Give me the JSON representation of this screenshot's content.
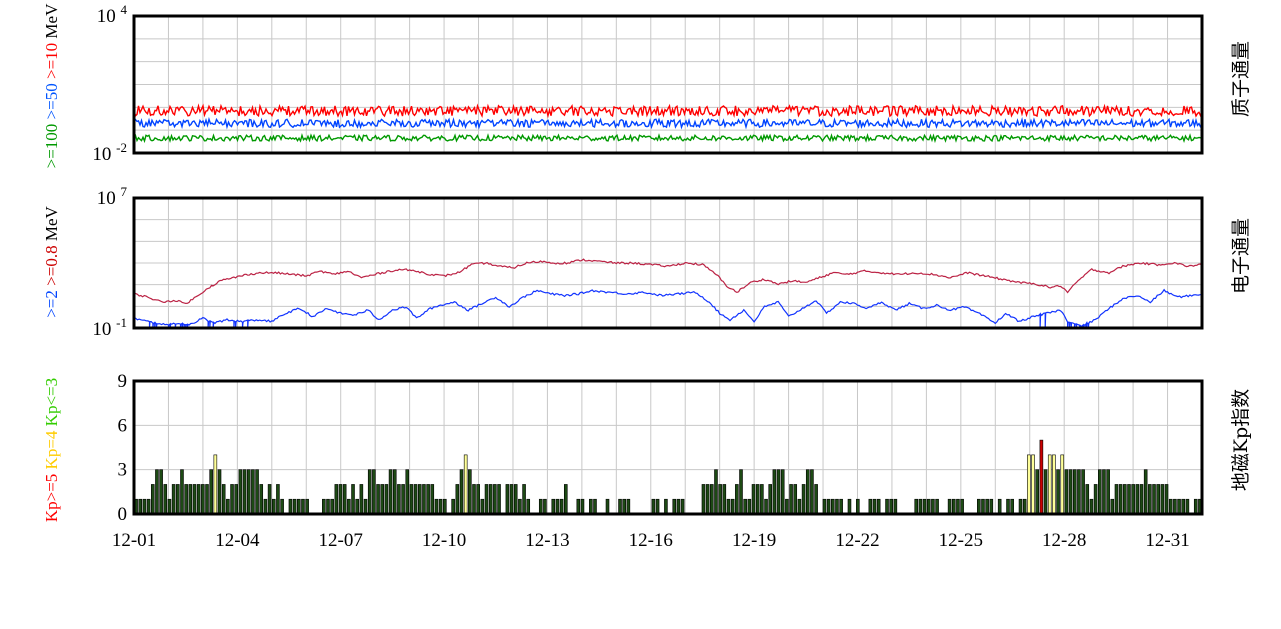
{
  "chart_data": [
    {
      "type": "line",
      "right_title": "质子通量",
      "y_scale": "log",
      "y_ticks": [
        {
          "base": "10",
          "exp": "4"
        },
        {
          "base": "10",
          "exp": "-2"
        }
      ],
      "ylim": [
        0.01,
        10000
      ],
      "xlim": [
        "12-01",
        "12-32"
      ],
      "legend_label": [
        {
          "text": ">=100",
          "color": "#009900"
        },
        {
          "text": " >=50",
          "color": "#0055ff"
        },
        {
          "text": " >=10",
          "color": "#ff0000"
        },
        {
          "text": " MeV",
          "color": "#000000"
        }
      ],
      "series": [
        {
          "color": "#ff0000",
          "level": 0.7,
          "noise": 0.45
        },
        {
          "color": "#0044ff",
          "level": 0.2,
          "noise": 0.35
        },
        {
          "color": "#009900",
          "level": 0.045,
          "noise": 0.25
        }
      ]
    },
    {
      "type": "line",
      "right_title": "电子通量",
      "y_scale": "log",
      "y_ticks": [
        {
          "base": "10",
          "exp": "7"
        },
        {
          "base": "10",
          "exp": "-1"
        }
      ],
      "ylim": [
        0.1,
        10000000
      ],
      "xlim": [
        "12-01",
        "12-32"
      ],
      "legend_label": [
        {
          "text": ">=2",
          "color": "#0044ff"
        },
        {
          "text": " >=0.8",
          "color": "#cc0000"
        },
        {
          "text": "  MeV",
          "color": "#000000"
        }
      ],
      "series": [
        {
          "color": "#bb2244",
          "points": [
            [
              0.0,
              1.1
            ],
            [
              0.4,
              0.9
            ],
            [
              0.8,
              0.6
            ],
            [
              1.2,
              0.7
            ],
            [
              1.5,
              0.5
            ],
            [
              1.8,
              0.9
            ],
            [
              2.1,
              1.4
            ],
            [
              2.5,
              1.9
            ],
            [
              2.9,
              2.1
            ],
            [
              3.3,
              2.3
            ],
            [
              3.7,
              2.4
            ],
            [
              4.1,
              2.4
            ],
            [
              4.6,
              2.3
            ],
            [
              5.0,
              2.2
            ],
            [
              5.4,
              2.5
            ],
            [
              5.8,
              2.3
            ],
            [
              6.2,
              2.5
            ],
            [
              6.6,
              2.1
            ],
            [
              7.0,
              2.3
            ],
            [
              7.4,
              2.5
            ],
            [
              7.8,
              2.6
            ],
            [
              8.2,
              2.5
            ],
            [
              8.6,
              2.3
            ],
            [
              9.0,
              2.2
            ],
            [
              9.4,
              2.4
            ],
            [
              9.8,
              2.9
            ],
            [
              10.2,
              3.0
            ],
            [
              10.6,
              2.8
            ],
            [
              11.0,
              2.7
            ],
            [
              11.4,
              3.0
            ],
            [
              11.8,
              3.1
            ],
            [
              12.2,
              3.0
            ],
            [
              12.6,
              3.0
            ],
            [
              13.0,
              3.2
            ],
            [
              13.5,
              3.1
            ],
            [
              14.0,
              3.0
            ],
            [
              14.5,
              3.0
            ],
            [
              15.0,
              2.9
            ],
            [
              15.5,
              2.8
            ],
            [
              16.0,
              3.0
            ],
            [
              16.5,
              2.9
            ],
            [
              16.9,
              2.3
            ],
            [
              17.2,
              1.6
            ],
            [
              17.5,
              1.2
            ],
            [
              17.9,
              1.8
            ],
            [
              18.3,
              2.0
            ],
            [
              18.7,
              1.7
            ],
            [
              19.1,
              1.9
            ],
            [
              19.5,
              1.8
            ],
            [
              19.9,
              2.1
            ],
            [
              20.3,
              2.4
            ],
            [
              20.7,
              2.3
            ],
            [
              21.2,
              2.5
            ],
            [
              21.7,
              2.4
            ],
            [
              22.2,
              2.3
            ],
            [
              22.7,
              2.4
            ],
            [
              23.2,
              2.3
            ],
            [
              23.7,
              2.1
            ],
            [
              24.2,
              2.4
            ],
            [
              24.7,
              2.2
            ],
            [
              25.2,
              2.0
            ],
            [
              25.7,
              1.8
            ],
            [
              26.2,
              1.7
            ],
            [
              26.6,
              1.5
            ],
            [
              26.9,
              1.6
            ],
            [
              27.1,
              1.2
            ],
            [
              27.4,
              1.9
            ],
            [
              27.8,
              2.6
            ],
            [
              28.3,
              2.4
            ],
            [
              28.7,
              2.8
            ],
            [
              29.2,
              3.0
            ],
            [
              29.7,
              2.9
            ],
            [
              30.2,
              3.0
            ],
            [
              30.6,
              2.8
            ],
            [
              31.0,
              2.9
            ]
          ]
        },
        {
          "color": "#1133ff",
          "points": [
            [
              0.0,
              -0.4
            ],
            [
              0.4,
              -0.6
            ],
            [
              0.8,
              -0.8
            ],
            [
              1.2,
              -0.7
            ],
            [
              1.6,
              -0.8
            ],
            [
              2.0,
              -0.4
            ],
            [
              2.3,
              -0.7
            ],
            [
              2.7,
              -0.5
            ],
            [
              3.1,
              -0.6
            ],
            [
              3.6,
              -0.5
            ],
            [
              4.0,
              -0.6
            ],
            [
              4.4,
              -0.1
            ],
            [
              4.8,
              0.2
            ],
            [
              5.2,
              -0.3
            ],
            [
              5.6,
              0.2
            ],
            [
              6.0,
              -0.1
            ],
            [
              6.4,
              -0.2
            ],
            [
              6.8,
              0.1
            ],
            [
              7.1,
              -0.5
            ],
            [
              7.5,
              0.1
            ],
            [
              7.9,
              0.3
            ],
            [
              8.2,
              -0.4
            ],
            [
              8.6,
              0.2
            ],
            [
              8.9,
              0.4
            ],
            [
              9.3,
              0.6
            ],
            [
              9.7,
              0.1
            ],
            [
              10.1,
              0.5
            ],
            [
              10.5,
              0.9
            ],
            [
              10.9,
              0.3
            ],
            [
              11.3,
              0.9
            ],
            [
              11.7,
              1.3
            ],
            [
              12.1,
              1.1
            ],
            [
              12.5,
              1.0
            ],
            [
              12.9,
              1.1
            ],
            [
              13.3,
              1.3
            ],
            [
              13.8,
              1.2
            ],
            [
              14.3,
              1.1
            ],
            [
              14.8,
              1.2
            ],
            [
              15.3,
              1.0
            ],
            [
              15.8,
              1.1
            ],
            [
              16.3,
              1.2
            ],
            [
              16.7,
              0.6
            ],
            [
              17.0,
              -0.1
            ],
            [
              17.3,
              -0.5
            ],
            [
              17.7,
              0.1
            ],
            [
              18.0,
              -0.6
            ],
            [
              18.3,
              0.3
            ],
            [
              18.7,
              0.6
            ],
            [
              19.0,
              -0.3
            ],
            [
              19.4,
              0.2
            ],
            [
              19.8,
              0.7
            ],
            [
              20.1,
              -0.1
            ],
            [
              20.5,
              0.6
            ],
            [
              20.9,
              0.5
            ],
            [
              21.3,
              0.2
            ],
            [
              21.7,
              0.6
            ],
            [
              22.1,
              0.1
            ],
            [
              22.5,
              0.5
            ],
            [
              22.9,
              0.2
            ],
            [
              23.3,
              0.4
            ],
            [
              23.7,
              0.1
            ],
            [
              24.1,
              0.3
            ],
            [
              24.6,
              -0.2
            ],
            [
              25.0,
              -0.7
            ],
            [
              25.3,
              -0.1
            ],
            [
              25.7,
              -0.6
            ],
            [
              26.1,
              -0.3
            ],
            [
              26.5,
              -0.1
            ],
            [
              26.9,
              0.1
            ],
            [
              27.1,
              -0.6
            ],
            [
              27.5,
              -0.9
            ],
            [
              27.9,
              -0.5
            ],
            [
              28.3,
              0.2
            ],
            [
              28.7,
              0.8
            ],
            [
              29.1,
              1.0
            ],
            [
              29.5,
              0.6
            ],
            [
              29.9,
              1.3
            ],
            [
              30.3,
              0.9
            ],
            [
              30.7,
              1.0
            ],
            [
              31.0,
              1.1
            ]
          ],
          "dropouts": [
            [
              0.3,
              0.65
            ],
            [
              0.95,
              1.6
            ],
            [
              2.05,
              2.35
            ],
            [
              2.7,
              3.3
            ],
            [
              26.3,
              26.55
            ],
            [
              27.05,
              27.75
            ]
          ]
        }
      ]
    },
    {
      "type": "bar",
      "right_title": "地磁Kp指数",
      "ylim": [
        0,
        9
      ],
      "y_ticks": [
        "9",
        "6",
        "3",
        "0"
      ],
      "x_tick_labels": [
        "12-01",
        "12-04",
        "12-07",
        "12-10",
        "12-13",
        "12-16",
        "12-19",
        "12-22",
        "12-25",
        "12-28",
        "12-31"
      ],
      "legend_label": [
        {
          "text": "Kp>=5",
          "color": "#ff0000"
        },
        {
          "text": "  Kp=4",
          "color": "#ffcc00"
        },
        {
          "text": "  Kp<=3",
          "color": "#33cc00"
        }
      ],
      "colors": {
        "kp_low": "#1d4a14",
        "kp_4": "#ffff99",
        "kp_5": "#cc0000"
      },
      "values_per_day": 8,
      "values": [
        1,
        1,
        1,
        1,
        2,
        3,
        3,
        2,
        1,
        2,
        2,
        3,
        2,
        2,
        2,
        2,
        2,
        2,
        3,
        4,
        3,
        2,
        1,
        2,
        2,
        3,
        3,
        3,
        3,
        3,
        2,
        1,
        2,
        1,
        2,
        1,
        0,
        1,
        1,
        1,
        1,
        1,
        0,
        0,
        0,
        1,
        1,
        1,
        2,
        2,
        2,
        1,
        2,
        1,
        2,
        1,
        3,
        3,
        2,
        2,
        2,
        3,
        3,
        2,
        2,
        3,
        2,
        2,
        2,
        2,
        2,
        2,
        1,
        1,
        1,
        0,
        1,
        2,
        3,
        4,
        3,
        2,
        2,
        1,
        2,
        2,
        2,
        2,
        0,
        2,
        2,
        2,
        1,
        2,
        1,
        0,
        0,
        1,
        1,
        0,
        1,
        1,
        1,
        2,
        0,
        0,
        1,
        1,
        0,
        1,
        1,
        0,
        0,
        1,
        0,
        0,
        1,
        1,
        1,
        0,
        0,
        0,
        0,
        0,
        1,
        1,
        0,
        1,
        0,
        1,
        1,
        1,
        0,
        0,
        0,
        0,
        2,
        2,
        2,
        3,
        2,
        2,
        1,
        1,
        2,
        3,
        1,
        1,
        2,
        2,
        2,
        1,
        2,
        3,
        3,
        3,
        1,
        2,
        2,
        1,
        2,
        3,
        3,
        2,
        0,
        1,
        1,
        1,
        1,
        1,
        0,
        1,
        0,
        1,
        0,
        0,
        1,
        1,
        1,
        0,
        1,
        1,
        1,
        0,
        0,
        0,
        0,
        1,
        1,
        1,
        1,
        1,
        1,
        0,
        0,
        1,
        1,
        1,
        1,
        0,
        0,
        0,
        1,
        1,
        1,
        1,
        0,
        1,
        0,
        1,
        1,
        0,
        1,
        1,
        4,
        4,
        3,
        5,
        3,
        4,
        4,
        3,
        4,
        3,
        3,
        3,
        3,
        3,
        2,
        1,
        2,
        3,
        3,
        3,
        1,
        2,
        2,
        2,
        2,
        2,
        2,
        2,
        3,
        2,
        2,
        2,
        2,
        2,
        1,
        1,
        1,
        1,
        1,
        0,
        1,
        1
      ]
    }
  ]
}
